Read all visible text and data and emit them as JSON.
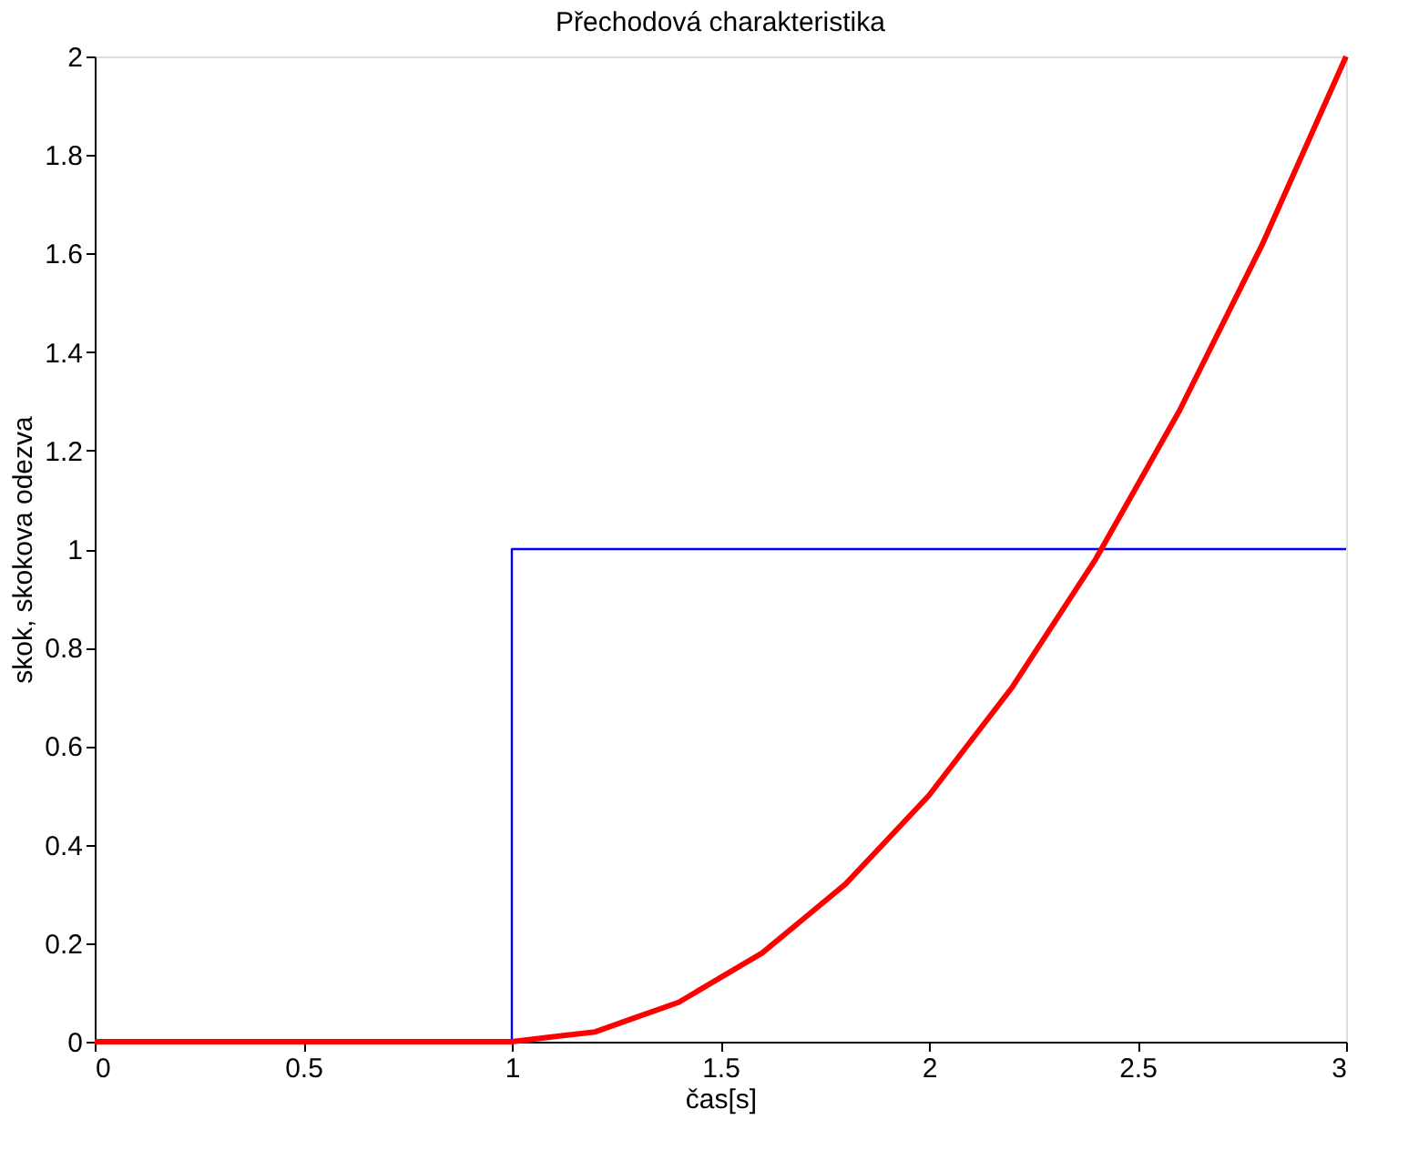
{
  "chart_data": {
    "type": "line",
    "title": "Přechodová charakteristika",
    "xlabel": "čas[s]",
    "ylabel": "skok, skokova odezva",
    "xlim": [
      0,
      3
    ],
    "ylim": [
      0,
      2
    ],
    "xticks": [
      0,
      0.5,
      1,
      1.5,
      2,
      2.5,
      3
    ],
    "yticks": [
      0,
      0.2,
      0.4,
      0.6,
      0.8,
      1,
      1.2,
      1.4,
      1.6,
      1.8,
      2
    ],
    "grid": false,
    "line_style": "solid",
    "marker": "none",
    "series": [
      {
        "color": "#0000ff",
        "x": [
          0,
          1,
          1,
          3
        ],
        "values": [
          0,
          0,
          1,
          1
        ]
      },
      {
        "color": "#ff0000",
        "x": [
          0,
          0.5,
          1,
          1.1,
          1.2,
          1.3,
          1.4,
          1.5,
          1.6,
          1.7,
          1.8,
          1.9,
          2,
          2.1,
          2.2,
          2.3,
          2.4,
          2.5,
          2.6,
          2.7,
          2.8,
          2.9,
          3
        ],
        "values": [
          0,
          0,
          0,
          0.01,
          0.02,
          0.05,
          0.08,
          0.13,
          0.18,
          0.25,
          0.32,
          0.41,
          0.5,
          0.61,
          0.72,
          0.85,
          0.98,
          1.13,
          1.28,
          1.45,
          1.62,
          1.81,
          2
        ]
      }
    ]
  }
}
